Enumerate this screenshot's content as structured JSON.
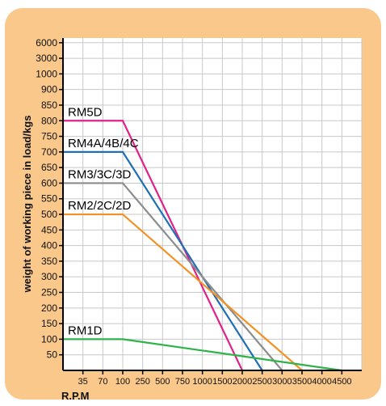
{
  "chart_data": {
    "type": "line",
    "ylabel": "weight of working piece in load/kgs",
    "xlabel": "R.P.M",
    "x_ticks": [
      "35",
      "70",
      "100",
      "250",
      "500",
      "750",
      "1000",
      "1500",
      "2000",
      "2500",
      "3000",
      "3500",
      "4000",
      "4500"
    ],
    "y_ticks": [
      "6000",
      "3000",
      "1000",
      "900",
      "850",
      "800",
      "750",
      "700",
      "650",
      "600",
      "550",
      "500",
      "450",
      "400",
      "350",
      "300",
      "250",
      "200",
      "150",
      "100",
      "50"
    ],
    "grid": true,
    "colors": {
      "frame": "#f9c88a",
      "plot_bg": "#ffffff",
      "grid": "#c8c8c8"
    },
    "series": [
      {
        "name": "RM5D",
        "color": "#e0218a",
        "points": [
          [
            0,
            800
          ],
          [
            100,
            800
          ],
          [
            2000,
            0
          ]
        ]
      },
      {
        "name": "RM4A/4B/4C",
        "color": "#1f6fb5",
        "points": [
          [
            0,
            700
          ],
          [
            100,
            700
          ],
          [
            2500,
            0
          ]
        ]
      },
      {
        "name": "RM3/3C/3D",
        "color": "#8c8c8c",
        "points": [
          [
            0,
            600
          ],
          [
            100,
            600
          ],
          [
            3000,
            0
          ]
        ]
      },
      {
        "name": "RM2/2C/2D",
        "color": "#f39224",
        "points": [
          [
            0,
            500
          ],
          [
            100,
            500
          ],
          [
            3500,
            0
          ]
        ]
      },
      {
        "name": "RM1D",
        "color": "#2db34a",
        "points": [
          [
            0,
            100
          ],
          [
            100,
            100
          ],
          [
            4500,
            0
          ]
        ]
      }
    ]
  }
}
